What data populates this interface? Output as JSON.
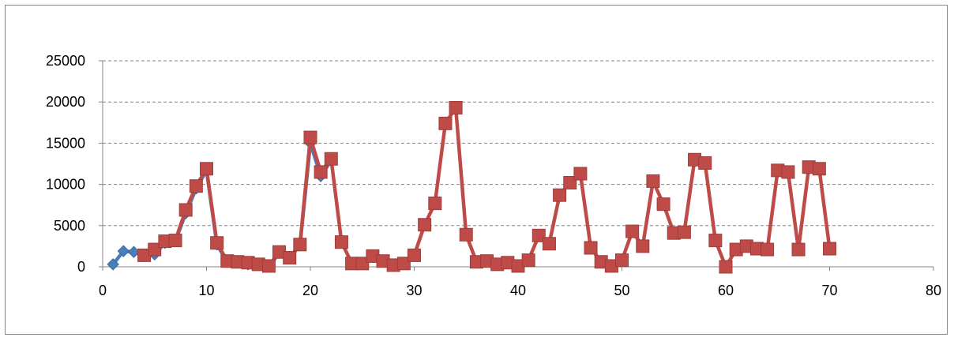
{
  "chart_data": {
    "type": "line",
    "xlim": [
      0,
      80
    ],
    "ylim": [
      0,
      25000
    ],
    "x_ticks": [
      "0",
      "10",
      "20",
      "30",
      "40",
      "50",
      "60",
      "70",
      "80"
    ],
    "y_ticks": [
      "0",
      "5000",
      "10000",
      "15000",
      "20000",
      "25000"
    ],
    "grid": {
      "horizontal": true,
      "style": "dashed"
    },
    "legend": "none",
    "series": [
      {
        "color": "#4a7ebb",
        "marker": "diamond",
        "x": [
          1,
          2,
          3,
          4,
          5,
          6,
          7,
          8,
          9,
          10,
          11,
          12,
          13,
          14,
          15,
          16,
          17,
          18,
          19,
          20,
          21,
          22
        ],
        "y": [
          300,
          1900,
          1800,
          1300,
          1500,
          2900,
          3100,
          6500,
          9500,
          11700,
          2700,
          600,
          500,
          300,
          200,
          0,
          1700,
          1100,
          2600,
          15000,
          11000,
          12900
        ]
      },
      {
        "color": "#be4b48",
        "marker": "square",
        "x": [
          4,
          5,
          6,
          7,
          8,
          9,
          10,
          11,
          12,
          13,
          14,
          15,
          16,
          17,
          18,
          19,
          20,
          21,
          22,
          23,
          24,
          25,
          26,
          27,
          28,
          29,
          30,
          31,
          32,
          33,
          34,
          35,
          36,
          37,
          38,
          39,
          40,
          41,
          42,
          43,
          44,
          45,
          46,
          47,
          48,
          49,
          50,
          51,
          52,
          53,
          54,
          55,
          56,
          57,
          58,
          59,
          60,
          61,
          62,
          63,
          64,
          65,
          66,
          67,
          68,
          69,
          70
        ],
        "y": [
          1400,
          2100,
          3100,
          3200,
          6900,
          9800,
          11900,
          2900,
          700,
          600,
          500,
          300,
          100,
          1800,
          1100,
          2700,
          15700,
          11500,
          13100,
          3000,
          400,
          400,
          1300,
          700,
          200,
          400,
          1400,
          5100,
          7700,
          17400,
          19300,
          3900,
          600,
          700,
          300,
          500,
          100,
          800,
          3800,
          2800,
          8700,
          10200,
          11300,
          2300,
          600,
          100,
          800,
          4300,
          2500,
          10400,
          7600,
          4100,
          4200,
          13000,
          12600,
          3200,
          0,
          2100,
          2500,
          2200,
          2100,
          11700,
          11500,
          2100,
          12100,
          11900,
          2200
        ]
      }
    ]
  }
}
